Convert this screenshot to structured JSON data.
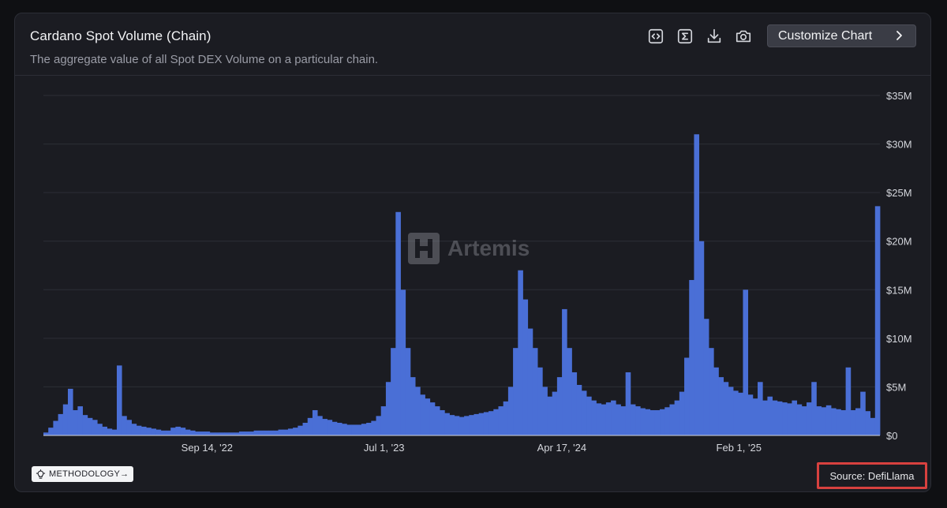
{
  "header": {
    "title": "Cardano Spot Volume (Chain)",
    "subtitle": "The aggregate value of all Spot DEX Volume on a particular chain.",
    "customize_label": "Customize Chart",
    "toolbar_icons": [
      "embed-code-icon",
      "sigma-icon",
      "download-icon",
      "camera-icon"
    ]
  },
  "watermark": {
    "text": "Artemis"
  },
  "footer": {
    "methodology_label": "METHODOLOGY→",
    "source_label": "Source: DefiLlama"
  },
  "colors": {
    "series": "#4a6fd6",
    "background": "#1b1c22",
    "grid": "#2c2e36",
    "highlight": "#d8413f"
  },
  "chart_data": {
    "type": "bar",
    "title": "Cardano Spot Volume (Chain)",
    "xlabel": "",
    "ylabel": "",
    "ylim": [
      0,
      35
    ],
    "y_unit": "$M",
    "y_ticks": [
      "$0",
      "$5M",
      "$10M",
      "$15M",
      "$20M",
      "$25M",
      "$30M",
      "$35M"
    ],
    "x_ticks": [
      {
        "date": "2022-09-14",
        "label": "Sep 14, '22"
      },
      {
        "date": "2023-07-01",
        "label": "Jul 1, '23"
      },
      {
        "date": "2024-04-17",
        "label": "Apr 17, '24"
      },
      {
        "date": "2025-02-01",
        "label": "Feb 1, '25"
      }
    ],
    "x_range": [
      "2021-12-20",
      "2025-09-20"
    ],
    "grid": true,
    "legend": "none",
    "series": [
      {
        "frequency": "weekly",
        "values": [
          0.3,
          0.8,
          1.5,
          2.2,
          3.2,
          4.8,
          2.6,
          3.0,
          2.1,
          1.8,
          1.6,
          1.2,
          0.9,
          0.7,
          0.6,
          7.2,
          2.0,
          1.6,
          1.2,
          1.0,
          0.9,
          0.8,
          0.7,
          0.6,
          0.5,
          0.5,
          0.8,
          0.9,
          0.8,
          0.6,
          0.5,
          0.4,
          0.4,
          0.4,
          0.3,
          0.3,
          0.3,
          0.3,
          0.3,
          0.3,
          0.4,
          0.4,
          0.4,
          0.5,
          0.5,
          0.5,
          0.5,
          0.5,
          0.6,
          0.6,
          0.7,
          0.8,
          1.0,
          1.3,
          1.8,
          2.6,
          2.0,
          1.7,
          1.6,
          1.4,
          1.3,
          1.2,
          1.1,
          1.1,
          1.1,
          1.2,
          1.3,
          1.5,
          2.0,
          3.0,
          5.5,
          9.0,
          23.0,
          15.0,
          9.0,
          6.0,
          5.0,
          4.2,
          3.8,
          3.4,
          3.0,
          2.6,
          2.3,
          2.1,
          2.0,
          1.9,
          2.0,
          2.1,
          2.2,
          2.3,
          2.4,
          2.5,
          2.7,
          3.0,
          3.5,
          5.0,
          9.0,
          17.0,
          14.0,
          11.0,
          9.0,
          7.0,
          5.0,
          4.0,
          4.5,
          6.0,
          13.0,
          9.0,
          6.5,
          5.2,
          4.6,
          4.0,
          3.6,
          3.3,
          3.2,
          3.4,
          3.6,
          3.2,
          3.0,
          6.5,
          3.2,
          3.0,
          2.8,
          2.7,
          2.6,
          2.6,
          2.7,
          2.9,
          3.2,
          3.6,
          4.5,
          8.0,
          16.0,
          31.0,
          20.0,
          12.0,
          9.0,
          7.0,
          6.0,
          5.5,
          5.0,
          4.6,
          4.4,
          15.0,
          4.2,
          3.8,
          5.5,
          3.6,
          4.0,
          3.6,
          3.5,
          3.4,
          3.3,
          3.6,
          3.2,
          3.0,
          3.4,
          5.5,
          3.0,
          2.9,
          3.1,
          2.8,
          2.7,
          2.6,
          7.0,
          2.6,
          2.8,
          4.5,
          2.5,
          1.8,
          23.6
        ]
      }
    ]
  }
}
